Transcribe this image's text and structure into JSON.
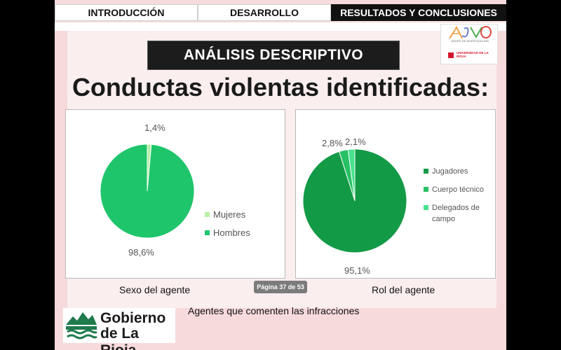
{
  "nav": {
    "tabs": [
      {
        "label": "INTRODUCCIÓN"
      },
      {
        "label": "DESARROLLO"
      },
      {
        "label": "RESULTADOS Y CONCLUSIONES"
      }
    ]
  },
  "logo": {
    "group_text": "GRUPO DE INVESTIGACIÓN",
    "university": "UNIVERSIDAD DE LA RIOJA"
  },
  "section_banner": "ANÁLISIS DESCRIPTIVO",
  "main_title": "Conductas violentas identificadas:",
  "chart_data": [
    {
      "type": "pie",
      "title": "",
      "categories": [
        "Mujeres",
        "Hombres"
      ],
      "values": [
        1.4,
        98.6
      ],
      "data_labels": [
        "1,4%",
        "98,6%"
      ],
      "colors": [
        "#b6f0a6",
        "#1fc56b"
      ],
      "legend": "right"
    },
    {
      "type": "pie",
      "title": "",
      "categories": [
        "Jugadores",
        "Cuerpo técnico",
        "Delegados de campo"
      ],
      "values": [
        95.1,
        2.8,
        2.1
      ],
      "data_labels": [
        "95,1%",
        "2,8%",
        "2,1%"
      ],
      "colors": [
        "#139a46",
        "#28c064",
        "#49e28c"
      ],
      "legend": "right"
    }
  ],
  "captions": {
    "left": "Sexo del agente",
    "right": "Rol del agente",
    "bottom": "Agentes que comenten las infracciones"
  },
  "page_indicator": "Página 37 de 53",
  "footer": {
    "line1": "Gobierno",
    "line2": "de La Rioja"
  }
}
